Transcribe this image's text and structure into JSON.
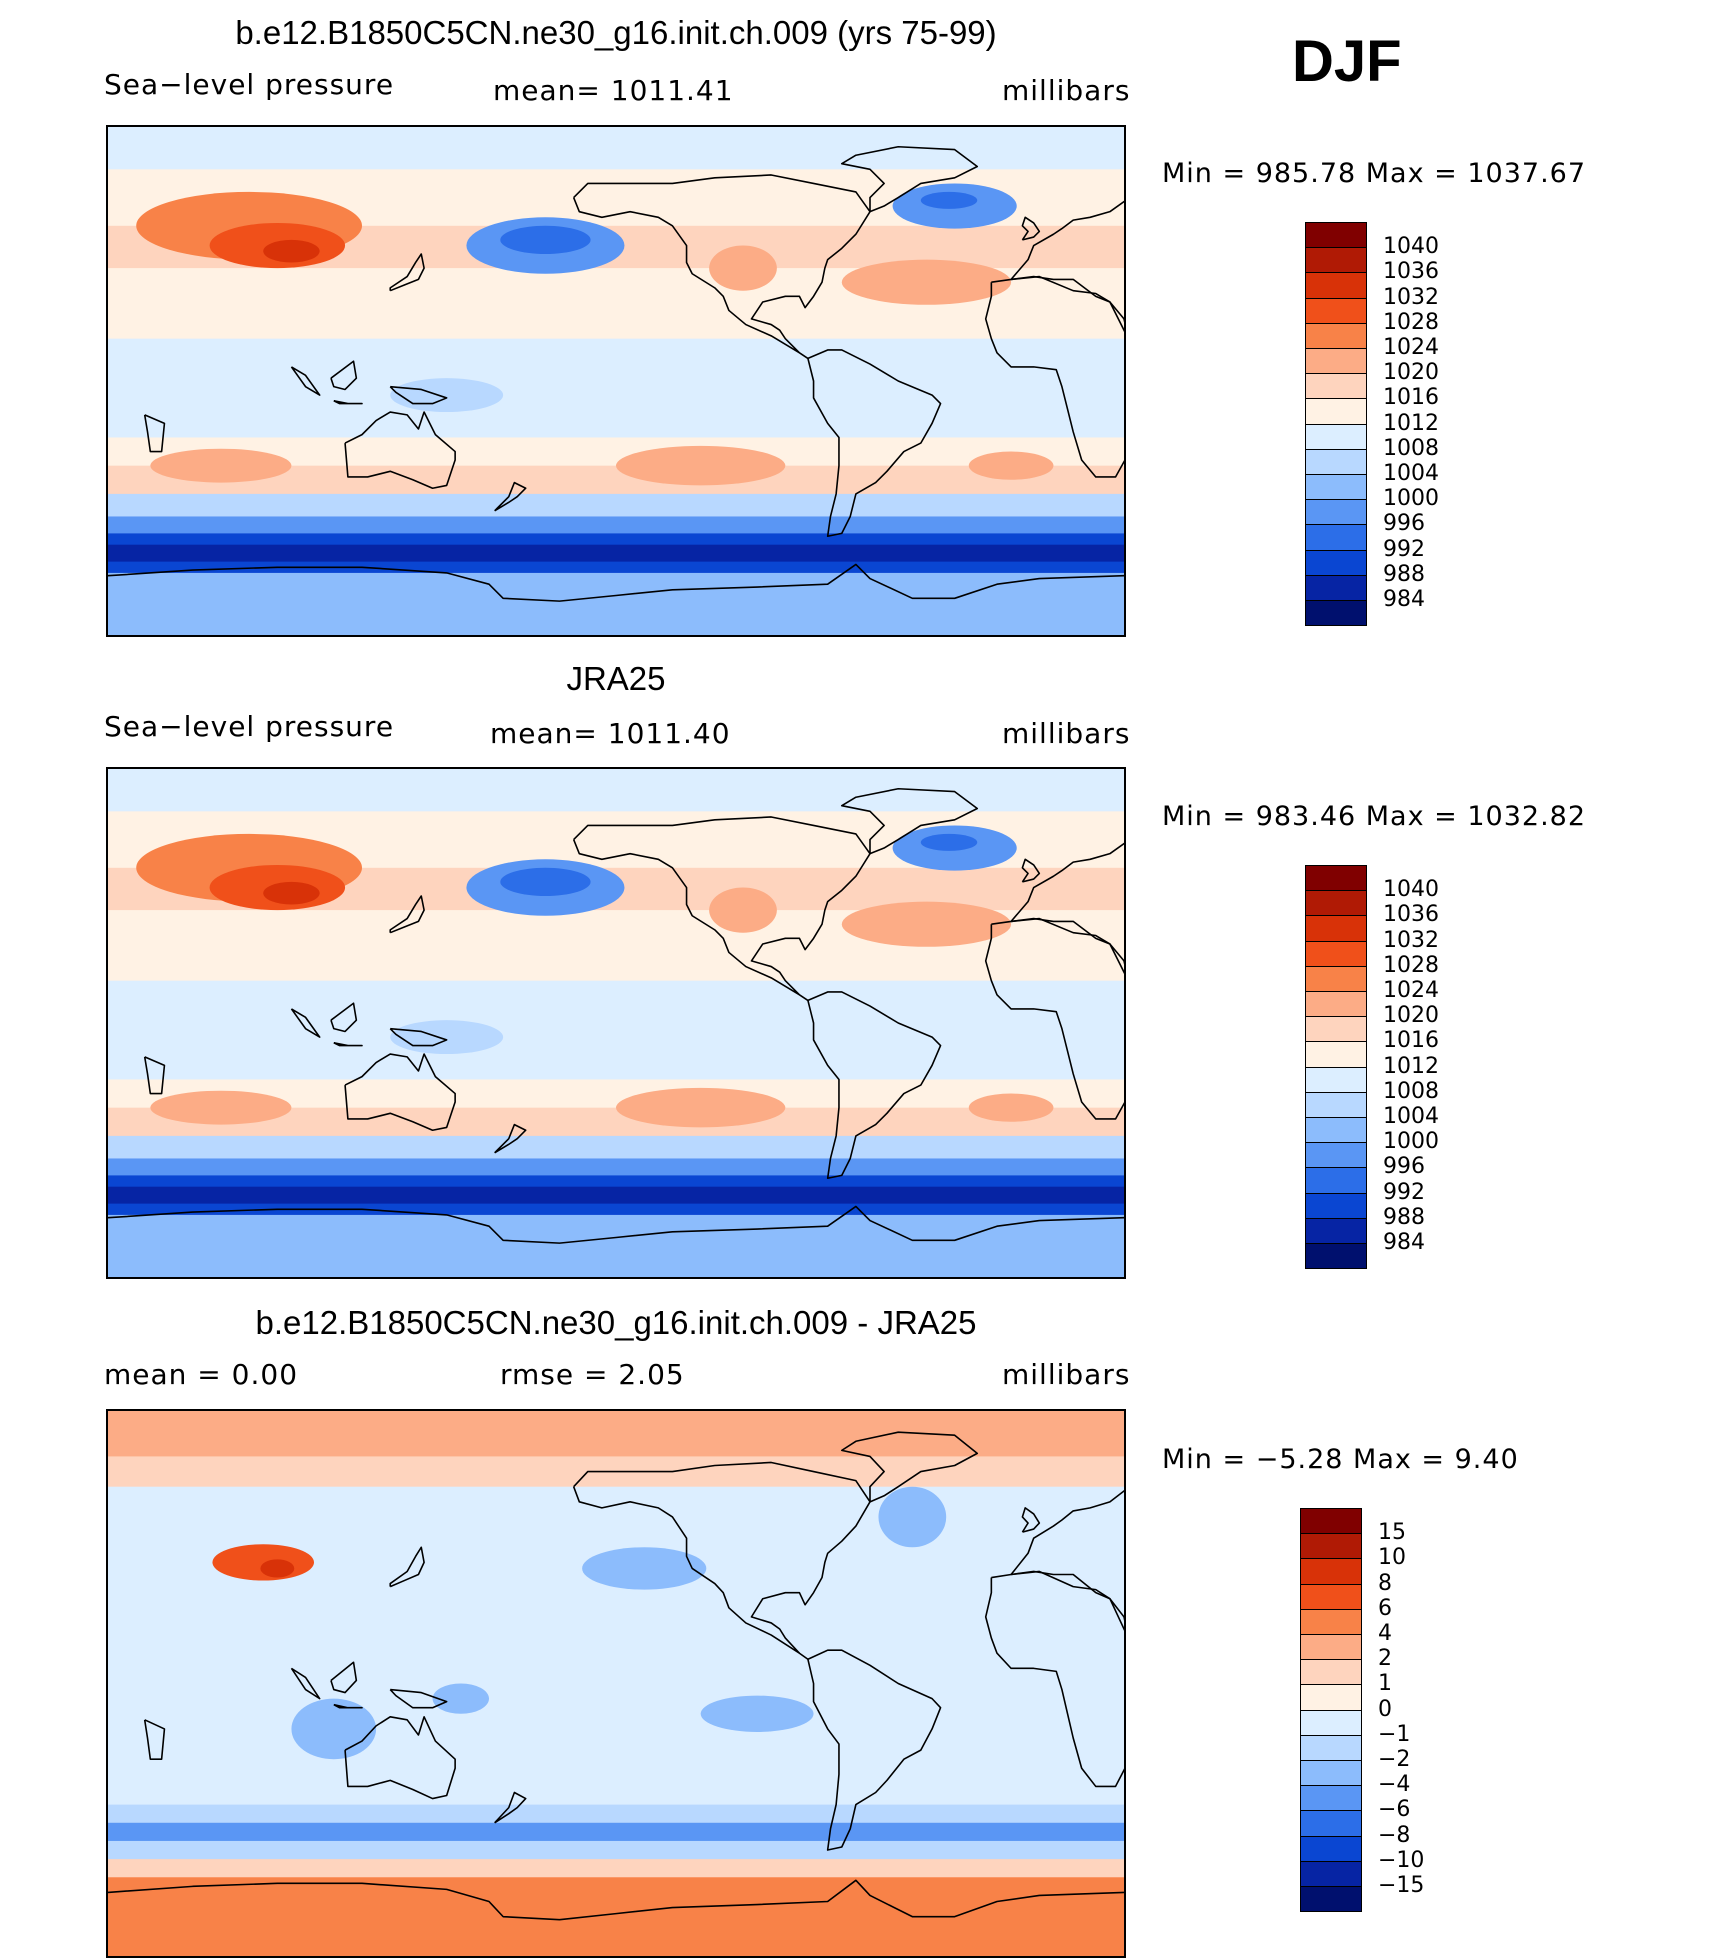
{
  "season": "DJF",
  "panels": [
    {
      "title": "b.e12.B1850C5CN.ne30_g16.init.ch.009 (yrs 75-99)",
      "left": "Sea−level pressure",
      "center": "mean=  1011.41",
      "right": "millibars",
      "minmax": "Min  =  985.78  Max  =  1037.67",
      "kind": "slp"
    },
    {
      "title": "JRA25",
      "left": "Sea−level pressure",
      "center": "mean=  1011.40",
      "right": "millibars",
      "minmax": "Min  =  983.46  Max  =  1032.82",
      "kind": "slp"
    },
    {
      "title": "b.e12.B1850C5CN.ne30_g16.init.ch.009 - JRA25",
      "left": "mean  =     0.00",
      "center": "rmse  =     2.05",
      "right": "millibars",
      "minmax": "Min  =    −5.28  Max  =     9.40",
      "kind": "diff"
    }
  ],
  "colorbars": {
    "slp": {
      "labels": [
        "1040",
        "1036",
        "1032",
        "1028",
        "1024",
        "1020",
        "1016",
        "1012",
        "1008",
        "1004",
        "1000",
        "996",
        "992",
        "988",
        "984"
      ],
      "colors": [
        "#800000",
        "#b01a05",
        "#d83208",
        "#f0501a",
        "#f88248",
        "#fcac86",
        "#fed4be",
        "#fff2e4",
        "#dceeff",
        "#b8d8ff",
        "#8cbcfc",
        "#5a96f4",
        "#2c6ee8",
        "#0a46d2",
        "#0624a4",
        "#00106e"
      ]
    },
    "diff": {
      "labels": [
        "15",
        "10",
        "8",
        "6",
        "4",
        "2",
        "1",
        "0",
        "−1",
        "−2",
        "−4",
        "−6",
        "−8",
        "−10",
        "−15"
      ],
      "colors": [
        "#800000",
        "#b01a05",
        "#d83208",
        "#f0501a",
        "#f88248",
        "#fcac86",
        "#fed4be",
        "#fff2e4",
        "#dceeff",
        "#b8d8ff",
        "#8cbcfc",
        "#5a96f4",
        "#2c6ee8",
        "#0a46d2",
        "#0624a4",
        "#00106e"
      ]
    }
  }
}
